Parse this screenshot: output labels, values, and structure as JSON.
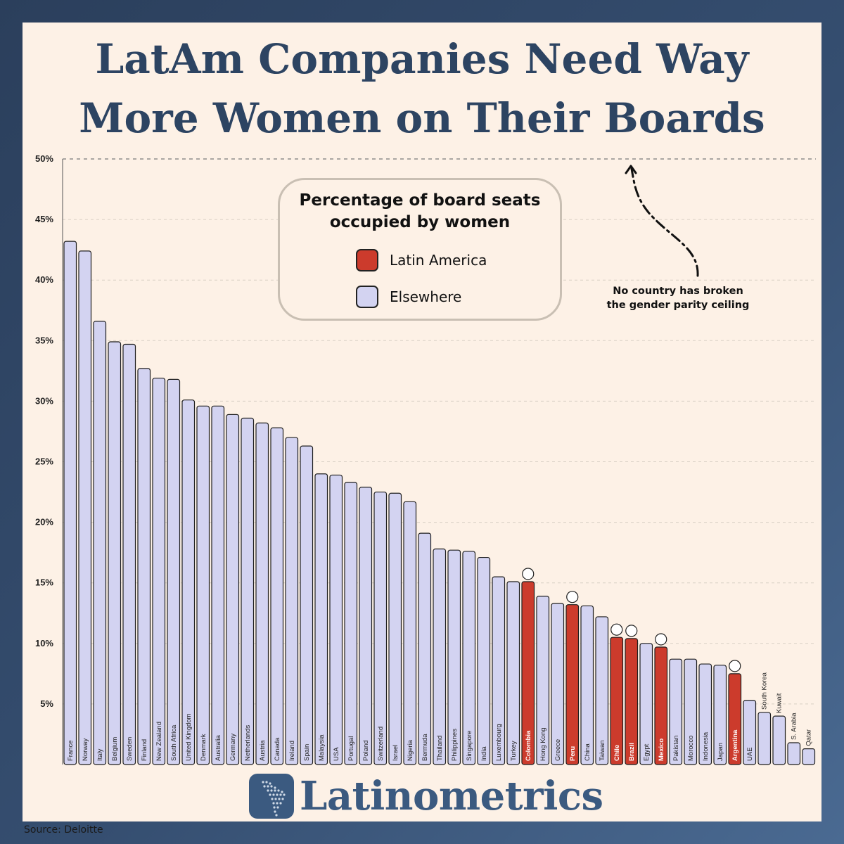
{
  "title": {
    "line1": "LatAm Companies Need Way",
    "line2": "More Women on Their Boards"
  },
  "legend": {
    "title_line1": "Percentage of board seats",
    "title_line2": "occupied by women",
    "items": [
      {
        "label": "Latin America",
        "color": "#cc3b2c"
      },
      {
        "label": "Elsewhere",
        "color": "#d3d3f1"
      }
    ]
  },
  "annotation": {
    "line1": "No country has broken",
    "line2": "the gender parity ceiling"
  },
  "brand": "Latinometrics",
  "source": "Source: Deloitte",
  "colors": {
    "latam": "#cc3b2c",
    "elsewhere": "#d3d3f1",
    "title": "#2d4462",
    "panel": "#fdf1e6"
  },
  "chart_data": {
    "type": "bar",
    "title": "Percentage of board seats occupied by women",
    "ylabel": "",
    "ylim": [
      0,
      50
    ],
    "yticks": [
      "5%",
      "10%",
      "15%",
      "20%",
      "25%",
      "30%",
      "35%",
      "40%",
      "45%",
      "50%"
    ],
    "grid": true,
    "categories": [
      "France",
      "Norway",
      "Italy",
      "Belgium",
      "Sweden",
      "Finland",
      "New Zealand",
      "South Africa",
      "United Kingdom",
      "Denmark",
      "Australia",
      "Germany",
      "Netherlands",
      "Austria",
      "Canada",
      "Ireland",
      "Spain",
      "Malaysia",
      "USA",
      "Portugal",
      "Poland",
      "Switzerland",
      "Israel",
      "Nigeria",
      "Bermuda",
      "Thailand",
      "Philippines",
      "Singapore",
      "India",
      "Luxembourg",
      "Turkey",
      "Colombia",
      "Hong Kong",
      "Greece",
      "Peru",
      "China",
      "Taiwan",
      "Chile",
      "Brazil",
      "Egypt",
      "Mexico",
      "Pakistan",
      "Morocco",
      "Indonesia",
      "Japan",
      "Argentina",
      "UAE",
      "South Korea",
      "Kuwait",
      "S. Arabia",
      "Qatar"
    ],
    "values": [
      43.2,
      42.4,
      36.6,
      34.9,
      34.7,
      32.7,
      31.9,
      31.8,
      30.1,
      29.6,
      29.6,
      28.9,
      28.6,
      28.2,
      27.8,
      27.0,
      26.3,
      24.0,
      23.9,
      23.3,
      22.9,
      22.5,
      22.4,
      21.7,
      19.1,
      17.8,
      17.7,
      17.6,
      17.1,
      15.5,
      15.1,
      15.1,
      13.9,
      13.3,
      13.2,
      13.1,
      12.2,
      10.5,
      10.4,
      10.0,
      9.7,
      8.7,
      8.7,
      8.3,
      8.2,
      7.5,
      5.3,
      4.3,
      4.0,
      1.8,
      1.3
    ],
    "latam": [
      "Colombia",
      "Peru",
      "Chile",
      "Brazil",
      "Mexico",
      "Argentina"
    ]
  }
}
